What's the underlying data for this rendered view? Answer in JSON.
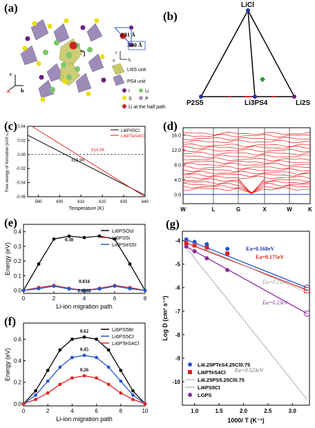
{
  "panels": {
    "a": "(a)",
    "b": "(b)",
    "c": "(c)",
    "d": "(d)",
    "e": "(e)",
    "f": "(f)",
    "g": "(g)"
  },
  "panel_a": {
    "dist1": "4.31 Å",
    "dist2": "3.40 Å",
    "legend": [
      "Li6S unit",
      "PS4 unit",
      "I",
      "Li",
      "S",
      "P",
      "Li at the half path"
    ],
    "axes": [
      "c",
      "a",
      "b"
    ],
    "colors": {
      "I": "#6b1f7a",
      "Li": "#7cc76a",
      "S": "#e8e000",
      "P": "#b090c0",
      "half": "#cc2222"
    }
  },
  "chart_data": [
    {
      "panel": "b",
      "type": "scatter",
      "title": "",
      "vertices": [
        "LiCl",
        "P2S5",
        "Li3PS4",
        "Li2S"
      ],
      "xlabel": "",
      "ylabel": ""
    },
    {
      "panel": "c",
      "type": "line",
      "xlabel": "Temperature (K)",
      "ylabel": "Free energy of formation (eV/f.u.)",
      "xlim": [
        585,
        640
      ],
      "ylim": [
        -0.06,
        0.04
      ],
      "xticks": [
        590,
        600,
        610,
        620,
        630,
        640
      ],
      "yticks": [
        0.04,
        0.02,
        0.0,
        -0.02,
        -0.04,
        -0.06
      ],
      "series": [
        {
          "name": "Li6PS5Cl",
          "x": [
            585,
            640
          ],
          "y": [
            0.0274,
            -0.0579
          ],
          "color": "#000000"
        },
        {
          "name": "Li6PTeS4Cl",
          "x": [
            587,
            640
          ],
          "y": [
            0.04,
            -0.06
          ],
          "color": "#dd2222"
        }
      ],
      "annotations": [
        "614.2K",
        "613.9K"
      ]
    },
    {
      "panel": "d",
      "type": "line",
      "xlabel": "",
      "ylabel": "",
      "ylim": [
        -2.5,
        18
      ],
      "yticks": [
        0.0,
        4.0,
        8.0,
        12.0,
        16.0
      ],
      "xticks": [
        "W",
        "L",
        "G",
        "X",
        "W",
        "K"
      ]
    },
    {
      "panel": "e",
      "type": "line",
      "xlabel": "Li-ion migration path",
      "ylabel": "Energy (eV)",
      "xlim": [
        0,
        8
      ],
      "ylim": [
        -0.02,
        0.45
      ],
      "xticks": [
        0,
        2,
        4,
        6,
        8
      ],
      "yticks": [
        0.0,
        0.1,
        0.2,
        0.3,
        0.4
      ],
      "series": [
        {
          "name": "Li6PSOsI",
          "color": "#000000",
          "x": [
            0,
            1,
            2,
            3,
            4,
            5,
            6,
            7,
            8
          ],
          "y": [
            0,
            0.18,
            0.35,
            0.37,
            0.36,
            0.37,
            0.35,
            0.18,
            0
          ]
        },
        {
          "name": "Li6PS5I",
          "color": "#dd2222",
          "x": [
            0,
            1,
            2,
            3,
            4,
            5,
            6,
            7,
            8
          ],
          "y": [
            0,
            0.02,
            0.034,
            0.015,
            0,
            0.015,
            0.034,
            0.02,
            0
          ]
        },
        {
          "name": "Li6PSeS5I",
          "color": "#2255cc",
          "x": [
            0,
            1,
            2,
            3,
            4,
            5,
            6,
            7,
            8
          ],
          "y": [
            0,
            0.012,
            0.029,
            0.01,
            0,
            0.01,
            0.029,
            0.012,
            0
          ]
        }
      ],
      "annotations": [
        "0.38",
        "0.034",
        "0.0288"
      ]
    },
    {
      "panel": "f",
      "type": "line",
      "xlabel": "Li-ion migration path",
      "ylabel": "Energy (eV)",
      "xlim": [
        0,
        10
      ],
      "ylim": [
        -0.02,
        0.75
      ],
      "xticks": [
        0,
        2,
        4,
        6,
        8,
        10
      ],
      "yticks": [
        0.0,
        0.2,
        0.4,
        0.6
      ],
      "series": [
        {
          "name": "Li6PS5Br",
          "color": "#000000",
          "x": [
            0,
            1,
            2,
            3,
            4,
            5,
            6,
            7,
            8,
            9,
            10
          ],
          "y": [
            0,
            0.12,
            0.31,
            0.5,
            0.6,
            0.62,
            0.6,
            0.5,
            0.31,
            0.12,
            0
          ]
        },
        {
          "name": "Li6PS5Cl",
          "color": "#2255cc",
          "x": [
            0,
            1,
            2,
            3,
            4,
            5,
            6,
            7,
            8,
            9,
            10
          ],
          "y": [
            0,
            0.08,
            0.21,
            0.34,
            0.43,
            0.45,
            0.43,
            0.34,
            0.21,
            0.08,
            0
          ]
        },
        {
          "name": "Li6PTeS4Cl",
          "color": "#dd2222",
          "x": [
            0,
            1,
            2,
            3,
            4,
            5,
            6,
            7,
            8,
            9,
            10
          ],
          "y": [
            0,
            0.04,
            0.1,
            0.18,
            0.24,
            0.26,
            0.24,
            0.18,
            0.1,
            0.04,
            0
          ]
        }
      ],
      "annotations": [
        "0.62",
        "0.45",
        "0.26"
      ]
    },
    {
      "panel": "g",
      "type": "line",
      "xlabel": "1000/ T (K⁻¹)",
      "ylabel": "Log D (cm² s⁻¹)",
      "xlim": [
        0.75,
        3.35
      ],
      "ylim": [
        -11,
        -3.6
      ],
      "xticks": [
        1.0,
        1.5,
        2.0,
        2.5,
        3.0
      ],
      "yticks": [
        -4,
        -5,
        -6,
        -7,
        -8,
        -9,
        -10
      ],
      "series": [
        {
          "name": "Li6.25PTeS4.25Cl0.75",
          "color": "#2255cc",
          "x": [
            0.83,
            1.0,
            1.25,
            1.67,
            3.3
          ],
          "y": [
            -3.95,
            -4.05,
            -4.15,
            -4.35,
            -6.0
          ],
          "ea": "Ea=0.168eV"
        },
        {
          "name": "Li6PTeS4Cl",
          "color": "#dd2222",
          "x": [
            0.83,
            1.0,
            1.25,
            1.67,
            3.3
          ],
          "y": [
            -4.1,
            -4.2,
            -4.3,
            -4.55,
            -6.1
          ],
          "ea": "Ea=0.175eV"
        },
        {
          "name": "Li6.25PS5.25Cl0.75",
          "color": "#aaaaaa",
          "x": [
            0.83,
            3.3
          ],
          "y": [
            -4.0,
            -6.2
          ],
          "ea": "Ea=0.211eV"
        },
        {
          "name": "Li6PS5Cl",
          "color": "#999999",
          "x": [
            0.83,
            3.3
          ],
          "y": [
            -4.3,
            -10.75
          ],
          "ea": "Ea=0.523eV"
        },
        {
          "name": "LGPS",
          "color": "#8a2a9a",
          "x": [
            0.83,
            1.0,
            1.25,
            1.67,
            3.3
          ],
          "y": [
            -4.25,
            -4.45,
            -4.75,
            -5.25,
            -7.1
          ],
          "ea": "Ea=0.23eV"
        }
      ]
    }
  ]
}
